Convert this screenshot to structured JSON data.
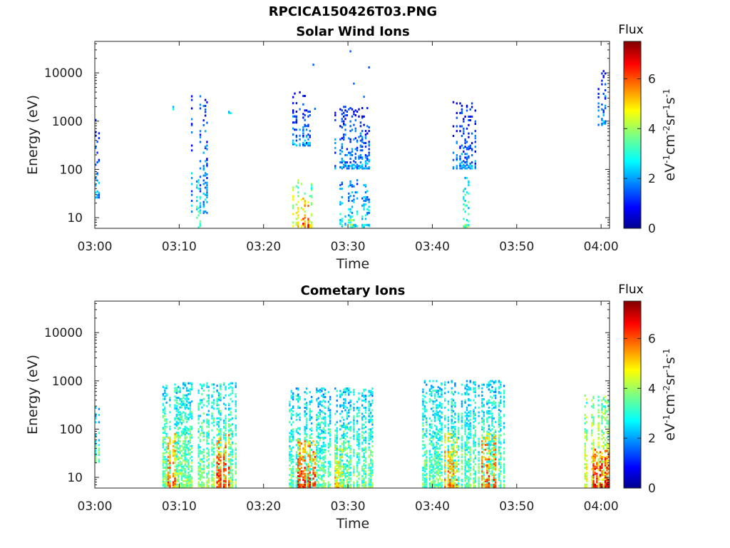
{
  "figure_title": "RPCICA150426T03.PNG",
  "chart_data": [
    {
      "type": "heatmap",
      "title": "Solar Wind Ions",
      "xlabel": "Time",
      "ylabel": "Energy (eV)",
      "x_tick_labels": [
        "03:00",
        "03:10",
        "03:20",
        "03:30",
        "03:40",
        "03:50",
        "04:00"
      ],
      "xlim": [
        "03:00",
        "04:01"
      ],
      "y_scale": "log",
      "ylim": [
        6,
        45000
      ],
      "y_tick_labels": [
        "10",
        "100",
        "1000",
        "10000"
      ],
      "colorbar": {
        "title": "Flux",
        "label": "eV^-1cm^-2sr^-1s^-1",
        "range": [
          0,
          7.5
        ],
        "tick_labels": [
          "0",
          "2",
          "4",
          "6"
        ],
        "colormap": "jet"
      },
      "activity": [
        {
          "start": "03:00.0",
          "end": "03:00.6",
          "emin": 25,
          "emax": 1200,
          "flux": 2.2
        },
        {
          "start": "03:09.2",
          "end": "03:09.6",
          "emin": 1500,
          "emax": 2800,
          "flux": 2.4
        },
        {
          "start": "03:11.0",
          "end": "03:13.6",
          "emin": 12,
          "emax": 3500,
          "flux": 2.2
        },
        {
          "start": "03:12.0",
          "end": "03:12.6",
          "emin": 6,
          "emax": 60,
          "flux": 3.6
        },
        {
          "start": "03:15.8",
          "end": "03:16.5",
          "emin": 1400,
          "emax": 2200,
          "flux": 2.8
        },
        {
          "start": "03:23.2",
          "end": "03:26.0",
          "emin": 300,
          "emax": 4000,
          "flux": 1.9
        },
        {
          "start": "03:23.2",
          "end": "03:25.8",
          "emin": 6,
          "emax": 60,
          "flux": 4.8
        },
        {
          "start": "03:24.6",
          "end": "03:25.4",
          "emin": 6,
          "emax": 25,
          "flux": 6.2
        },
        {
          "start": "03:25.6",
          "end": "03:26.2",
          "emin": 6,
          "emax": 60,
          "flux": 4.2
        },
        {
          "start": "03:28.4",
          "end": "03:32.6",
          "emin": 100,
          "emax": 2000,
          "flux": 2.0
        },
        {
          "start": "03:30.2",
          "end": "03:30.8",
          "emin": 6,
          "emax": 15,
          "flux": 4.2
        },
        {
          "start": "03:29.0",
          "end": "03:32.6",
          "emin": 6,
          "emax": 60,
          "flux": 2.8
        },
        {
          "start": "03:41.8",
          "end": "03:45.2",
          "emin": 100,
          "emax": 2500,
          "flux": 1.9
        },
        {
          "start": "03:43.6",
          "end": "03:44.6",
          "emin": 6,
          "emax": 80,
          "flux": 3.4
        },
        {
          "start": "03:59.6",
          "end": "04:00.6",
          "emin": 800,
          "emax": 11000,
          "flux": 2.0
        }
      ],
      "points": [
        {
          "t": "03:25.8",
          "e": 14800,
          "flux": 1.6
        },
        {
          "t": "03:30.2",
          "e": 28000,
          "flux": 1.6
        },
        {
          "t": "03:32.4",
          "e": 13000,
          "flux": 1.5
        },
        {
          "t": "03:30.6",
          "e": 6000,
          "flux": 1.7
        },
        {
          "t": "03:31.8",
          "e": 3200,
          "flux": 1.8
        },
        {
          "t": "03:26.0",
          "e": 1800,
          "flux": 1.7
        }
      ]
    },
    {
      "type": "heatmap",
      "title": "Cometary Ions",
      "xlabel": "Time",
      "ylabel": "Energy (eV)",
      "x_tick_labels": [
        "03:00",
        "03:10",
        "03:20",
        "03:30",
        "03:40",
        "03:50",
        "04:00"
      ],
      "xlim": [
        "03:00",
        "04:01"
      ],
      "y_scale": "log",
      "ylim": [
        6,
        45000
      ],
      "y_tick_labels": [
        "10",
        "100",
        "1000",
        "10000"
      ],
      "colorbar": {
        "title": "Flux",
        "label": "eV^-1cm^-2sr^-1s^-1",
        "range": [
          0,
          7.5
        ],
        "tick_labels": [
          "0",
          "2",
          "4",
          "6"
        ],
        "colormap": "jet"
      },
      "activity": [
        {
          "start": "03:00.0",
          "end": "03:00.6",
          "emin": 20,
          "emax": 280,
          "flux": 3.4
        },
        {
          "start": "03:08.0",
          "end": "03:16.8",
          "emin": 6,
          "emax": 900,
          "flux": 3.8
        },
        {
          "start": "03:08.6",
          "end": "03:09.6",
          "emin": 6,
          "emax": 80,
          "flux": 5.8
        },
        {
          "start": "03:14.4",
          "end": "03:16.0",
          "emin": 6,
          "emax": 90,
          "flux": 6.2
        },
        {
          "start": "03:23.0",
          "end": "03:33.0",
          "emin": 6,
          "emax": 700,
          "flux": 3.6
        },
        {
          "start": "03:24.0",
          "end": "03:26.4",
          "emin": 6,
          "emax": 60,
          "flux": 6.2
        },
        {
          "start": "03:27.8",
          "end": "03:29.4",
          "emin": 6,
          "emax": 50,
          "flux": 5.2
        },
        {
          "start": "03:38.8",
          "end": "03:48.8",
          "emin": 6,
          "emax": 1000,
          "flux": 3.6
        },
        {
          "start": "03:41.2",
          "end": "03:43.0",
          "emin": 6,
          "emax": 80,
          "flux": 5.6
        },
        {
          "start": "03:45.6",
          "end": "03:47.8",
          "emin": 6,
          "emax": 80,
          "flux": 6.0
        },
        {
          "start": "03:58.0",
          "end": "04:01.0",
          "emin": 6,
          "emax": 500,
          "flux": 4.6
        },
        {
          "start": "03:59.0",
          "end": "04:01.0",
          "emin": 6,
          "emax": 40,
          "flux": 6.6
        }
      ],
      "points": []
    }
  ]
}
